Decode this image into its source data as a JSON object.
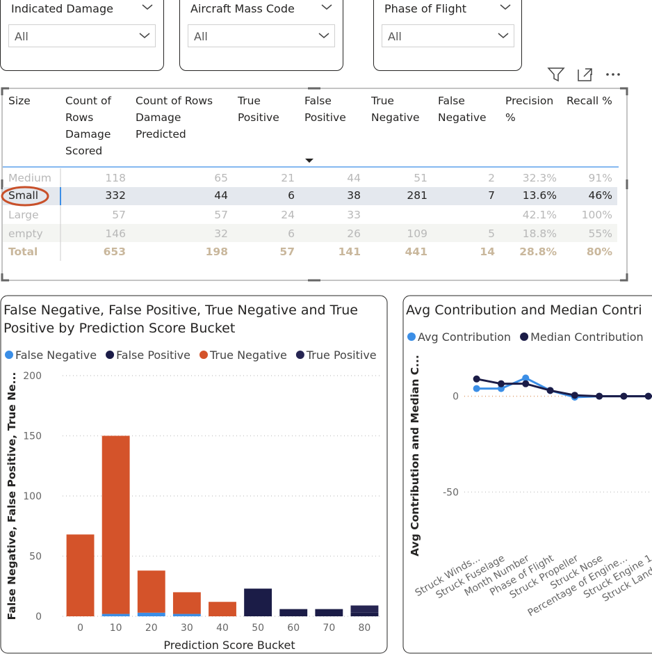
{
  "slicers": [
    {
      "title": "Indicated Damage",
      "value": "All"
    },
    {
      "title": "Aircraft Mass Code",
      "value": "All"
    },
    {
      "title": "Phase of Flight",
      "value": "All"
    }
  ],
  "table": {
    "headers": [
      "Size",
      "Count of Rows Damage Scored",
      "Count of Rows Damage Predicted",
      "True Positive",
      "False Positive",
      "True Negative",
      "False Negative",
      "Precision %",
      "Recall %"
    ],
    "rows": [
      [
        "Medium",
        118,
        65,
        21,
        44,
        51,
        2,
        "32.3%",
        "91%"
      ],
      [
        "Small",
        332,
        44,
        6,
        38,
        281,
        7,
        "13.6%",
        "46%"
      ],
      [
        "Large",
        57,
        57,
        24,
        33,
        null,
        null,
        "42.1%",
        "100%"
      ],
      [
        "empty",
        146,
        32,
        6,
        26,
        109,
        5,
        "18.8%",
        "55%"
      ]
    ],
    "total": [
      "Total",
      653,
      198,
      57,
      141,
      441,
      14,
      "28.8%",
      "80%"
    ]
  },
  "chart_data": [
    {
      "type": "bar",
      "stacked": true,
      "title": "False Negative, False Positive, True Negative and True Positive by Prediction Score Bucket",
      "x_label": "Prediction Score Bucket",
      "y_label": "False Negative, False Positive, True Ne...",
      "categories": [
        "0",
        "10",
        "20",
        "30",
        "40",
        "50",
        "60",
        "70",
        "80"
      ],
      "series": [
        {
          "name": "False Negative",
          "color": "#3b8ee6",
          "values": [
            0,
            2,
            3,
            2,
            0,
            0,
            0,
            0,
            0
          ]
        },
        {
          "name": "False Positive",
          "color": "#1b1c47",
          "values": [
            0,
            0,
            0,
            0,
            0,
            23,
            6,
            6,
            3
          ]
        },
        {
          "name": "True Negative",
          "color": "#d4532a",
          "values": [
            68,
            148,
            35,
            18,
            12,
            0,
            0,
            0,
            0
          ]
        },
        {
          "name": "True Positive",
          "color": "#262552",
          "values": [
            0,
            0,
            0,
            0,
            0,
            0,
            0,
            0,
            6
          ]
        }
      ],
      "ylim": [
        0,
        200
      ],
      "yticks": [
        0,
        50,
        100,
        150,
        200
      ],
      "grid": true
    },
    {
      "type": "line",
      "title": "Avg Contribution and Median Contri",
      "y_label": "Avg Contribution and Median C...",
      "categories": [
        "Struck Winds...",
        "Struck Fuselage",
        "Month Number",
        "Phase of Flight",
        "Struck Propeller",
        "Struck Nose",
        "Percentage of Engine...",
        "Struck Engine 1",
        "Struck Landing G"
      ],
      "series": [
        {
          "name": "Avg Contribution",
          "color": "#3b8ee6",
          "values": [
            4,
            4,
            9.5,
            3,
            -0.5,
            0,
            0,
            0,
            0
          ]
        },
        {
          "name": "Median Contribution",
          "color": "#1b1c47",
          "values": [
            9,
            6.5,
            6.5,
            3,
            0.5,
            0,
            0,
            0,
            0
          ]
        }
      ],
      "ylim": [
        -80,
        18
      ],
      "yticks": [
        -50,
        0
      ],
      "grid": true
    }
  ]
}
